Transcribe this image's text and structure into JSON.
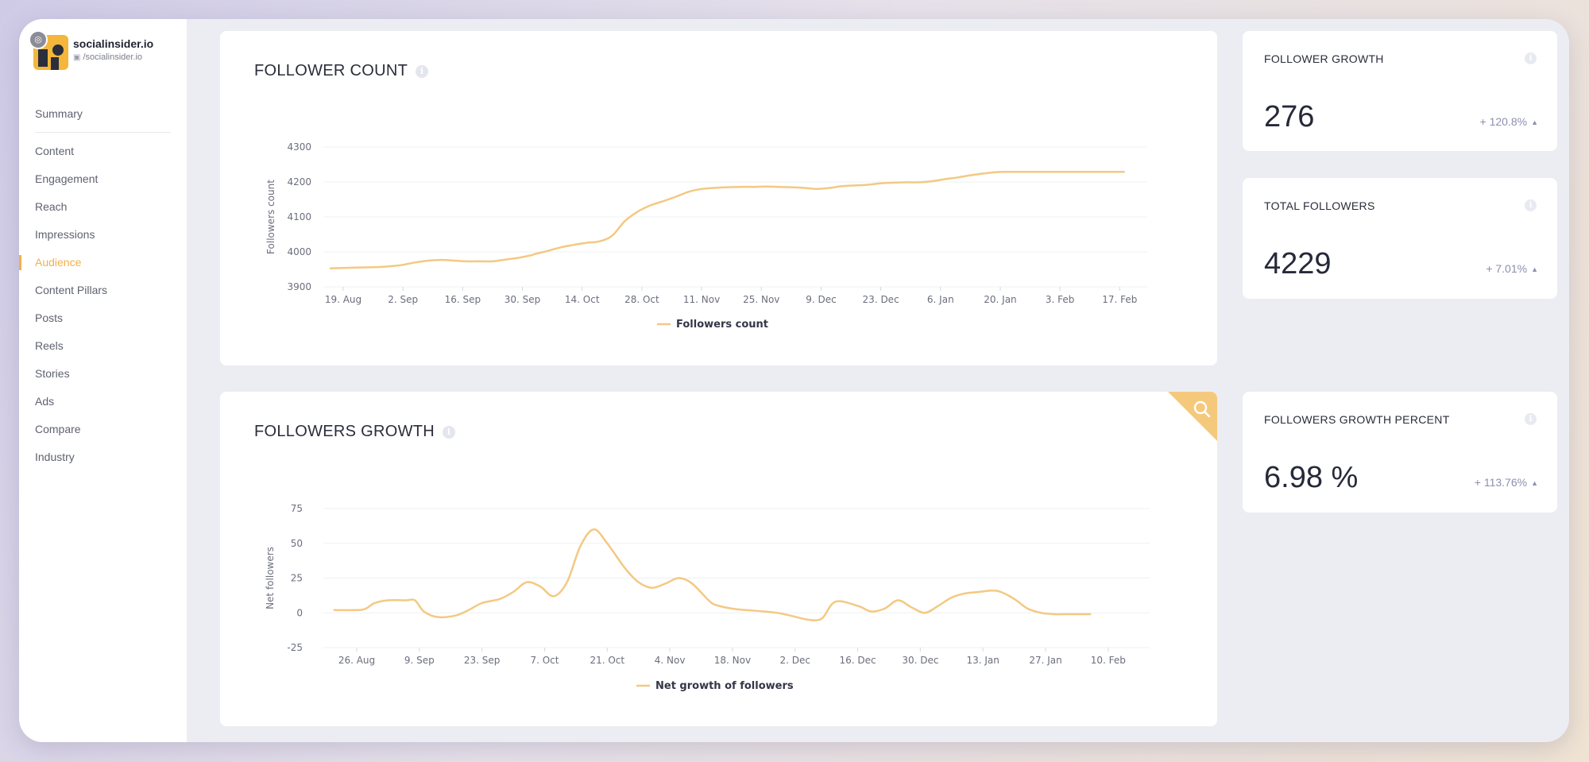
{
  "profile": {
    "name": "socialinsider.io",
    "handle": "/socialinsider.io",
    "network_icon": "instagram-icon"
  },
  "sidebar": {
    "items": [
      {
        "label": "Summary",
        "active": false
      },
      {
        "label": "Content",
        "active": false
      },
      {
        "label": "Engagement",
        "active": false
      },
      {
        "label": "Reach",
        "active": false
      },
      {
        "label": "Impressions",
        "active": false
      },
      {
        "label": "Audience",
        "active": true
      },
      {
        "label": "Content Pillars",
        "active": false
      },
      {
        "label": "Posts",
        "active": false
      },
      {
        "label": "Reels",
        "active": false
      },
      {
        "label": "Stories",
        "active": false
      },
      {
        "label": "Ads",
        "active": false
      },
      {
        "label": "Compare",
        "active": false
      },
      {
        "label": "Industry",
        "active": false
      }
    ]
  },
  "follower_count_card": {
    "title": "FOLLOWER COUNT",
    "info_icon": "info-icon"
  },
  "followers_growth_card": {
    "title": "FOLLOWERS GROWTH",
    "info_icon": "info-icon",
    "zoom_icon": "search-icon"
  },
  "stats": {
    "follower_growth": {
      "title": "FOLLOWER GROWTH",
      "value": "276",
      "change": "+ 120.8%"
    },
    "total_followers": {
      "title": "TOTAL FOLLOWERS",
      "value": "4229",
      "change": "+ 7.01%"
    },
    "growth_percent": {
      "title": "FOLLOWERS GROWTH PERCENT",
      "value": "6.98 %",
      "change": "+ 113.76%"
    }
  },
  "colors": {
    "accent": "#f2b04a",
    "series": "#f3c982",
    "corner": "#f5c97c",
    "change_text": "#8c8fb0"
  },
  "chart_data": [
    {
      "type": "line",
      "title": "FOLLOWER COUNT",
      "xlabel": "",
      "ylabel": "Followers count",
      "ylim": [
        3900,
        4300
      ],
      "yticks": [
        3900,
        4000,
        4100,
        4200,
        4300
      ],
      "xtick_labels": [
        "19. Aug",
        "2. Sep",
        "16. Sep",
        "30. Sep",
        "14. Oct",
        "28. Oct",
        "11. Nov",
        "25. Nov",
        "9. Dec",
        "23. Dec",
        "6. Jan",
        "20. Jan",
        "3. Feb",
        "17. Feb"
      ],
      "grid": true,
      "legend": "bottom-center",
      "series": [
        {
          "name": "Followers count",
          "x": [
            -3,
            0,
            3,
            6,
            9,
            12,
            14,
            17,
            20,
            23,
            26,
            29,
            32,
            35,
            38,
            41,
            44,
            45,
            48,
            51,
            54,
            57,
            60,
            63,
            66,
            69,
            72,
            75,
            78,
            81,
            84,
            87,
            90,
            93,
            96,
            99,
            102,
            105,
            108,
            111,
            114,
            117,
            120,
            123,
            126,
            129,
            132,
            135,
            138,
            141,
            144,
            147,
            150,
            153,
            156,
            159,
            162,
            165,
            168,
            171,
            174,
            177,
            180,
            183
          ],
          "values": [
            3953,
            3954,
            3955,
            3956,
            3957,
            3960,
            3963,
            3970,
            3975,
            3977,
            3975,
            3973,
            3973,
            3973,
            3978,
            3983,
            3990,
            3994,
            4003,
            4013,
            4020,
            4026,
            4030,
            4046,
            4088,
            4115,
            4133,
            4145,
            4158,
            4172,
            4180,
            4183,
            4185,
            4186,
            4186,
            4187,
            4186,
            4185,
            4183,
            4180,
            4183,
            4188,
            4190,
            4192,
            4196,
            4198,
            4199,
            4199,
            4202,
            4208,
            4213,
            4219,
            4224,
            4228,
            4229,
            4229,
            4229,
            4229,
            4229,
            4229,
            4229,
            4229,
            4229,
            4229
          ]
        }
      ]
    },
    {
      "type": "line",
      "title": "FOLLOWERS GROWTH",
      "xlabel": "",
      "ylabel": "Net followers",
      "ylim": [
        -25,
        75
      ],
      "yticks": [
        -25,
        0,
        25,
        50,
        75
      ],
      "xtick_labels": [
        "26. Aug",
        "9. Sep",
        "23. Sep",
        "7. Oct",
        "21. Oct",
        "4. Nov",
        "18. Nov",
        "2. Dec",
        "16. Dec",
        "30. Dec",
        "13. Jan",
        "27. Jan",
        "10. Feb"
      ],
      "grid": true,
      "legend": "bottom-center",
      "series": [
        {
          "name": "Net growth of followers",
          "x": [
            -5,
            0,
            2,
            4,
            7,
            11,
            13,
            15,
            18,
            22,
            25,
            28,
            32,
            35,
            38,
            41,
            44,
            47,
            50,
            53,
            56,
            60,
            63,
            66,
            69,
            72,
            75,
            79,
            81,
            84,
            87,
            91,
            94,
            97,
            101,
            104,
            107,
            112,
            115,
            118,
            121,
            124,
            127,
            130,
            133,
            136,
            139,
            142,
            144,
            147,
            150,
            153,
            156,
            158,
            160,
            162,
            164
          ],
          "values": [
            2,
            2,
            3,
            7,
            9,
            9,
            9,
            1,
            -3,
            -2,
            2,
            7,
            10,
            15,
            22,
            19,
            12,
            22,
            48,
            60,
            50,
            32,
            22,
            18,
            21,
            25,
            21,
            8,
            5,
            3,
            2,
            1,
            0,
            -2,
            -5,
            -4,
            8,
            5,
            1,
            3,
            9,
            4,
            0,
            5,
            11,
            14,
            15,
            16,
            15,
            10,
            3,
            0,
            -1,
            -1,
            -1,
            -1,
            -1
          ]
        }
      ]
    }
  ]
}
